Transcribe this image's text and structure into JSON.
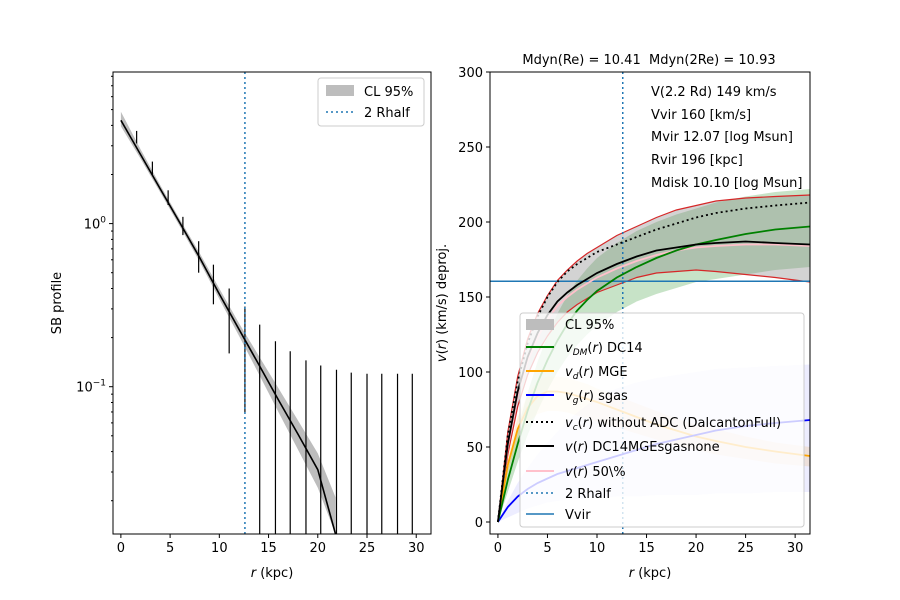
{
  "chart_data": [
    {
      "type": "line",
      "panel": "left",
      "xlabel": "r (kpc)",
      "ylabel": "SB profile",
      "yscale": "log",
      "xlim": [
        -0.8,
        31.5
      ],
      "ylim": [
        0.0125,
        8.5
      ],
      "xticks": [
        0,
        5,
        10,
        15,
        20,
        25,
        30
      ],
      "xticklabels": [
        "0",
        "5",
        "10",
        "15",
        "20",
        "25",
        "30"
      ],
      "yticks": [
        1.0,
        0.1
      ],
      "yticklabels": [
        "10^0",
        "10^-1"
      ],
      "legend": [
        {
          "label": "CL 95%",
          "kind": "band",
          "color": "#bdbdbd"
        },
        {
          "label": "2 Rhalf",
          "kind": "dotted",
          "color": "#1f77b4"
        }
      ],
      "vline_x": 12.6,
      "model": {
        "x": [
          0,
          2,
          4,
          6,
          8,
          10,
          12,
          14,
          16,
          18,
          20,
          21.8
        ],
        "y": [
          4.3,
          2.65,
          1.63,
          1.01,
          0.62,
          0.37,
          0.225,
          0.137,
          0.083,
          0.051,
          0.031,
          0.0125
        ],
        "lower": [
          3.95,
          2.5,
          1.55,
          0.96,
          0.585,
          0.345,
          0.205,
          0.12,
          0.07,
          0.041,
          0.024,
          0.0125
        ],
        "upper": [
          4.85,
          2.85,
          1.72,
          1.06,
          0.66,
          0.4,
          0.245,
          0.155,
          0.098,
          0.062,
          0.039,
          0.021
        ]
      },
      "errorbars": {
        "x": [
          1.6,
          3.2,
          4.8,
          6.3,
          7.9,
          9.4,
          11.0,
          12.6,
          14.1,
          15.7,
          17.2,
          18.8,
          20.3,
          21.9,
          23.4,
          25.0,
          26.5,
          28.1,
          29.6
        ],
        "lo": [
          3.1,
          2.0,
          1.3,
          0.85,
          0.5,
          0.32,
          0.16,
          0.07,
          0.0125,
          0.0125,
          0.0125,
          0.0125,
          0.0125,
          0.0125,
          0.0125,
          0.0125,
          0.0125,
          0.0125,
          0.0125
        ],
        "hi": [
          3.7,
          2.4,
          1.6,
          1.1,
          0.78,
          0.56,
          0.4,
          0.31,
          0.24,
          0.19,
          0.165,
          0.145,
          0.135,
          0.127,
          0.122,
          0.12,
          0.12,
          0.12,
          0.12
        ]
      }
    },
    {
      "type": "line",
      "panel": "right",
      "title": "Mdyn(Re) = 10.41  Mdyn(2Re) = 10.93",
      "xlabel": "r (kpc)",
      "ylabel": "v(r) (km/s) deproj.",
      "xlim": [
        -0.8,
        31.5
      ],
      "ylim": [
        -8,
        300
      ],
      "xticks": [
        0,
        5,
        10,
        15,
        20,
        25,
        30
      ],
      "xticklabels": [
        "0",
        "5",
        "10",
        "15",
        "20",
        "25",
        "30"
      ],
      "yticks": [
        0,
        50,
        100,
        150,
        200,
        250,
        300
      ],
      "yticklabels": [
        "0",
        "50",
        "100",
        "150",
        "200",
        "250",
        "300"
      ],
      "annotations": [
        "V(2.2 Rd) 149 km/s",
        "Vvir 160 [km/s]",
        "Mvir 12.07 [log Msun]",
        "Rvir 196 [kpc]",
        "Mdisk 10.10 [log Msun]"
      ],
      "vline_x": 12.6,
      "vvir": 160.5,
      "legend": [
        {
          "label": "CL 95%",
          "kind": "band",
          "color": "#bdbdbd"
        },
        {
          "label": "v_DM(r) DC14",
          "kind": "line",
          "color": "#008000"
        },
        {
          "label": "v_d(r) MGE",
          "kind": "line",
          "color": "#ffa500"
        },
        {
          "label": "v_g(r) sgas",
          "kind": "line",
          "color": "#0000ff"
        },
        {
          "label": "v_c(r) without ADC (DalcantonFull)",
          "kind": "dotted",
          "color": "#000000"
        },
        {
          "label": "v(r) DC14MGEsgasnone",
          "kind": "line",
          "color": "#000000"
        },
        {
          "label": "v(r) 50\\%",
          "kind": "line",
          "color": "#ffc0cb"
        },
        {
          "label": "2 Rhalf",
          "kind": "dotted",
          "color": "#1f77b4"
        },
        {
          "label": "Vvir",
          "kind": "line",
          "color": "#1f77b4"
        }
      ],
      "x": [
        0,
        1,
        2,
        3,
        4,
        5,
        6,
        7,
        8,
        9,
        10,
        12,
        14,
        16,
        18,
        20,
        22,
        25,
        28,
        31.5
      ],
      "series": [
        {
          "name": "v_DM(r) DC14",
          "color": "#008000",
          "values": [
            0,
            28,
            52,
            74,
            93,
            108,
            121,
            132,
            141,
            148,
            154,
            163,
            170,
            176,
            181,
            185,
            188,
            192,
            195,
            197
          ],
          "lower": [
            0,
            20,
            40,
            58,
            74,
            88,
            100,
            110,
            118,
            125,
            131,
            140,
            147,
            152,
            156,
            160,
            162,
            165,
            168,
            170
          ],
          "upper": [
            0,
            35,
            62,
            86,
            107,
            124,
            139,
            151,
            161,
            169,
            176,
            186,
            194,
            200,
            205,
            209,
            213,
            217,
            220,
            222
          ]
        },
        {
          "name": "v_d(r) MGE",
          "color": "#ffa500",
          "values": [
            0,
            38,
            62,
            76,
            84,
            87,
            87,
            86,
            84,
            82,
            80,
            75,
            70,
            65,
            61,
            57,
            54,
            50,
            47,
            44
          ],
          "lower": [
            0,
            33,
            54,
            66,
            72,
            74,
            74,
            73,
            71,
            69,
            67,
            63,
            59,
            55,
            51,
            48,
            45,
            42,
            39,
            37
          ],
          "upper": [
            0,
            43,
            70,
            85,
            94,
            97,
            97,
            96,
            94,
            92,
            89,
            84,
            79,
            74,
            69,
            65,
            62,
            57,
            53,
            50
          ]
        },
        {
          "name": "v_g(r) sgas",
          "color": "#0000ff",
          "values": [
            0,
            10,
            17,
            22,
            26,
            29,
            32,
            34,
            36,
            38,
            40,
            44,
            48,
            52,
            55,
            58,
            61,
            64,
            66,
            68
          ],
          "lower": [
            0,
            3,
            6,
            9,
            11,
            13,
            14,
            15,
            15,
            16,
            16,
            17,
            17,
            18,
            18,
            18,
            19,
            19,
            20,
            20
          ],
          "upper": [
            0,
            14,
            26,
            36,
            45,
            53,
            60,
            67,
            73,
            78,
            83,
            89,
            93,
            96,
            98,
            100,
            102,
            103,
            104,
            105
          ]
        },
        {
          "name": "v_c(r) without ADC (DalcantonFull)",
          "color": "#000000",
          "values": [
            0,
            58,
            94,
            119,
            137,
            150,
            160,
            167,
            172,
            176,
            180,
            185,
            190,
            195,
            199,
            203,
            206,
            209,
            211,
            213
          ]
        },
        {
          "name": "v(r) DC14MGEsgasnone",
          "color": "#000000",
          "values": [
            0,
            52,
            87,
            110,
            126,
            138,
            147,
            153,
            158,
            162,
            166,
            172,
            177,
            181,
            183,
            185,
            186,
            187,
            186,
            185
          ],
          "lower": [
            0,
            45,
            77,
            98,
            113,
            124,
            133,
            140,
            145,
            149,
            153,
            158,
            163,
            166,
            167,
            168,
            167,
            165,
            163,
            160
          ],
          "upper": [
            0,
            60,
            97,
            122,
            139,
            151,
            161,
            168,
            174,
            179,
            183,
            191,
            197,
            203,
            208,
            211,
            214,
            216,
            217,
            218
          ]
        },
        {
          "name": "v(r) 50\\%",
          "color": "#ffc0cb",
          "values": [
            0,
            50,
            84,
            107,
            123,
            135,
            144,
            150,
            155,
            159,
            163,
            169,
            174,
            178,
            181,
            183,
            184,
            185,
            185,
            184
          ]
        }
      ]
    }
  ]
}
